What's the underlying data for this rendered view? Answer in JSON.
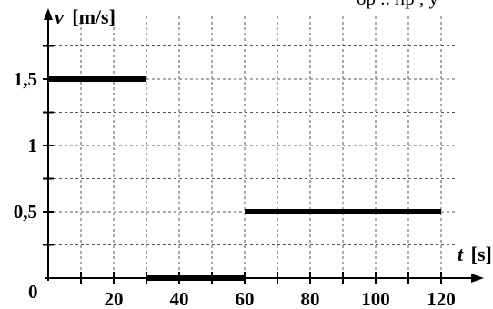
{
  "top_text": "ор  ..  пр  ,   у",
  "chart_data": {
    "type": "line",
    "xlabel_var": "t",
    "xlabel_unit": "[s]",
    "ylabel_var": "v",
    "ylabel_unit": "[m/s]",
    "origin_label": "0",
    "x_ticks": [
      {
        "value": 20,
        "label": "20"
      },
      {
        "value": 40,
        "label": "40"
      },
      {
        "value": 60,
        "label": "60"
      },
      {
        "value": 80,
        "label": "80"
      },
      {
        "value": 100,
        "label": "100"
      },
      {
        "value": 120,
        "label": "120"
      }
    ],
    "y_ticks": [
      {
        "value": 0.5,
        "label": "0,5"
      },
      {
        "value": 1,
        "label": "1"
      },
      {
        "value": 1.5,
        "label": "1,5"
      }
    ],
    "xlim": [
      0,
      125
    ],
    "ylim": [
      0,
      1.75
    ],
    "x_grid_step": 10,
    "y_grid_step": 0.25,
    "grid": true,
    "segments": [
      {
        "x": [
          0,
          30
        ],
        "y": [
          1.5,
          1.5
        ]
      },
      {
        "x": [
          30,
          60
        ],
        "y": [
          0,
          0
        ]
      },
      {
        "x": [
          60,
          120
        ],
        "y": [
          0.5,
          0.5
        ]
      }
    ]
  }
}
